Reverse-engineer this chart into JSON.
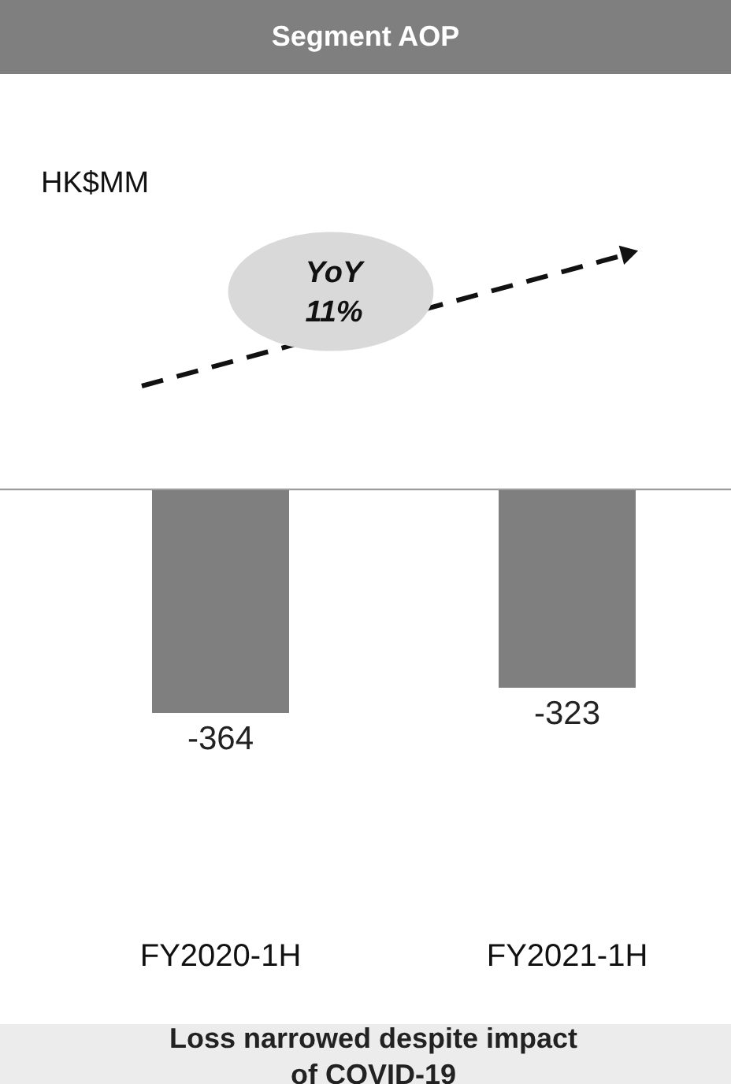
{
  "chart_data": {
    "type": "bar",
    "title": "Segment AOP",
    "categories": [
      "FY2020-1H",
      "FY2021-1H"
    ],
    "values": [
      -364,
      -323
    ],
    "color": "#7f7f7f",
    "data_labels": true,
    "annotations": [
      "YoY\n11%",
      "Loss narrowed despite impact\nof COVID-19",
      "HK$MM"
    ]
  }
}
